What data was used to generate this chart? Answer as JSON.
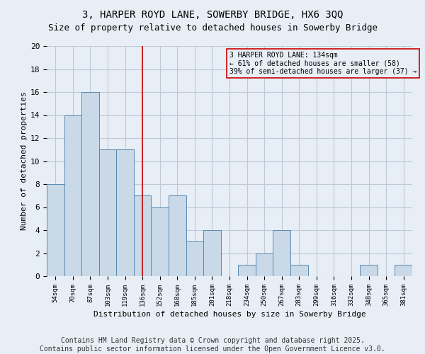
{
  "title": "3, HARPER ROYD LANE, SOWERBY BRIDGE, HX6 3QQ",
  "subtitle": "Size of property relative to detached houses in Sowerby Bridge",
  "xlabel": "Distribution of detached houses by size in Sowerby Bridge",
  "ylabel": "Number of detached properties",
  "categories": [
    "54sqm",
    "70sqm",
    "87sqm",
    "103sqm",
    "119sqm",
    "136sqm",
    "152sqm",
    "168sqm",
    "185sqm",
    "201sqm",
    "218sqm",
    "234sqm",
    "250sqm",
    "267sqm",
    "283sqm",
    "299sqm",
    "316sqm",
    "332sqm",
    "348sqm",
    "365sqm",
    "381sqm"
  ],
  "values": [
    8,
    14,
    16,
    11,
    11,
    7,
    6,
    7,
    3,
    4,
    0,
    1,
    2,
    4,
    1,
    0,
    0,
    0,
    1,
    0,
    1
  ],
  "bar_color": "#c9d9e8",
  "bar_edge_color": "#5a8ab0",
  "grid_color": "#c0c8d8",
  "bg_color": "#e8eef5",
  "vline_x": 5,
  "vline_color": "#cc0000",
  "annotation_text": "3 HARPER ROYD LANE: 134sqm\n← 61% of detached houses are smaller (58)\n39% of semi-detached houses are larger (37) →",
  "annotation_box_edge": "#cc0000",
  "ylim": [
    0,
    20
  ],
  "yticks": [
    0,
    2,
    4,
    6,
    8,
    10,
    12,
    14,
    16,
    18,
    20
  ],
  "footer": "Contains HM Land Registry data © Crown copyright and database right 2025.\nContains public sector information licensed under the Open Government Licence v3.0.",
  "title_fontsize": 10,
  "subtitle_fontsize": 9,
  "footer_fontsize": 7
}
